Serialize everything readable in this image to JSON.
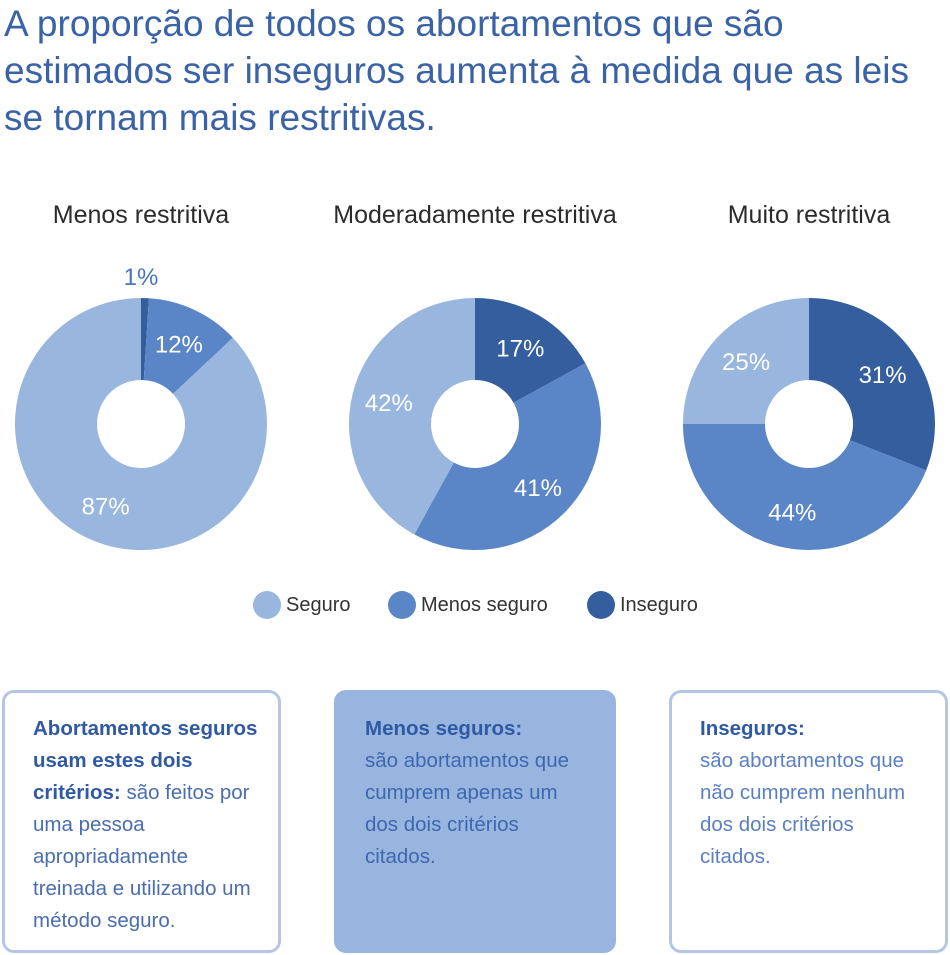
{
  "headline": "A proporção de todos os abortamentos que são estimados ser inseguros aumenta à medida que as leis se tornam mais restritivas.",
  "colors": {
    "seguro": "#99b6de",
    "menos_seguro": "#5a86c7",
    "inseguro": "#355e9f"
  },
  "chart_data": [
    {
      "type": "pie",
      "title": "Menos restritiva",
      "slices": [
        {
          "label": "Inseguro",
          "value": 1,
          "display": "1%"
        },
        {
          "label": "Menos seguro",
          "value": 12,
          "display": "12%"
        },
        {
          "label": "Seguro",
          "value": 87,
          "display": "87%"
        }
      ]
    },
    {
      "type": "pie",
      "title": "Moderadamente restritiva",
      "slices": [
        {
          "label": "Inseguro",
          "value": 17,
          "display": "17%"
        },
        {
          "label": "Menos seguro",
          "value": 41,
          "display": "41%"
        },
        {
          "label": "Seguro",
          "value": 42,
          "display": "42%"
        }
      ]
    },
    {
      "type": "pie",
      "title": "Muito restritiva",
      "slices": [
        {
          "label": "Inseguro",
          "value": 31,
          "display": "31%"
        },
        {
          "label": "Menos seguro",
          "value": 44,
          "display": "44%"
        },
        {
          "label": "Seguro",
          "value": 25,
          "display": "25%"
        }
      ]
    }
  ],
  "legend": [
    {
      "label": "Seguro",
      "key": "seguro"
    },
    {
      "label": "Menos seguro",
      "key": "menos_seguro"
    },
    {
      "label": "Inseguro",
      "key": "inseguro"
    }
  ],
  "definitions": [
    {
      "term": "Abortamentos seguros usam estes dois critérios:",
      "text": "são feitos por uma pessoa apropriadamente treinada e utilizando um método seguro."
    },
    {
      "term": "Menos seguros:",
      "text": "são abortamentos que cumprem apenas um dos dois critérios citados."
    },
    {
      "term": "Inseguros:",
      "text": "são abortamentos que não cumprem nenhum dos dois critérios citados."
    }
  ]
}
